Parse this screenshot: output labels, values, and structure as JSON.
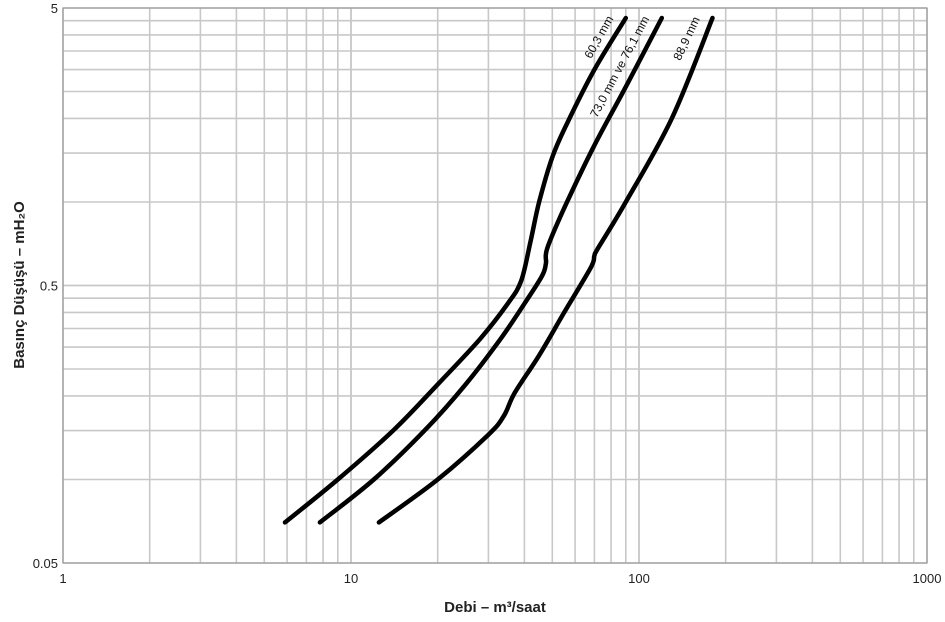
{
  "chart_data": {
    "type": "line",
    "title": "",
    "xlabel": "Debi – m³/saat",
    "ylabel": "Basınç Düşüşü – mH₂O",
    "x_scale": "log",
    "y_scale": "log",
    "xlim": [
      1,
      1000
    ],
    "ylim": [
      0.05,
      5
    ],
    "x_ticks": [
      1,
      10,
      100,
      1000
    ],
    "x_tick_labels": [
      "1",
      "10",
      "100",
      "1000"
    ],
    "y_ticks": [
      0.05,
      0.5,
      5
    ],
    "y_tick_labels": [
      "0.05",
      "0.5",
      "5"
    ],
    "grid": true,
    "legend": "none",
    "series": [
      {
        "name": "60,3 mm",
        "x": [
          5.9,
          9,
          14,
          20,
          28,
          35,
          39,
          42,
          45,
          50,
          56,
          70,
          90
        ],
        "y": [
          0.07,
          0.1,
          0.15,
          0.22,
          0.32,
          0.43,
          0.52,
          0.72,
          1.0,
          1.45,
          1.9,
          3.0,
          4.6
        ]
      },
      {
        "name": "73,0 mm ve 76,1 mm",
        "x": [
          7.8,
          12,
          18,
          25,
          33,
          40,
          46,
          47.5,
          48,
          55,
          70,
          90,
          120
        ],
        "y": [
          0.07,
          0.1,
          0.15,
          0.22,
          0.32,
          0.43,
          0.54,
          0.6,
          0.68,
          0.95,
          1.6,
          2.6,
          4.6
        ]
      },
      {
        "name": "88,9 mm",
        "x": [
          12.5,
          20,
          30,
          34,
          37,
          45,
          55,
          68,
          70,
          72,
          90,
          130,
          180
        ],
        "y": [
          0.07,
          0.1,
          0.145,
          0.17,
          0.205,
          0.28,
          0.4,
          0.58,
          0.64,
          0.68,
          1.0,
          2.0,
          4.6
        ]
      }
    ]
  }
}
